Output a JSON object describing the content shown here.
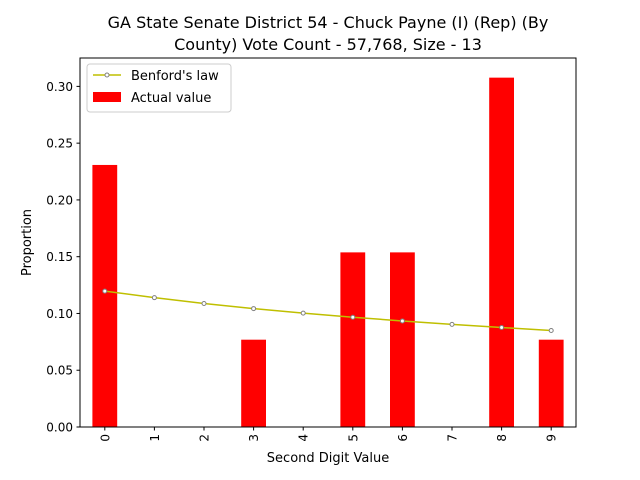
{
  "chart_data": {
    "type": "bar",
    "title_lines": [
      "GA State Senate District 54 - Chuck Payne (I) (Rep) (By",
      "County) Vote Count - 57,768, Size - 13"
    ],
    "xlabel": "Second Digit Value",
    "ylabel": "Proportion",
    "categories": [
      "0",
      "1",
      "2",
      "3",
      "4",
      "5",
      "6",
      "7",
      "8",
      "9"
    ],
    "ylim": [
      0,
      0.325
    ],
    "yticks": [
      "0.00",
      "0.05",
      "0.10",
      "0.15",
      "0.20",
      "0.25",
      "0.30"
    ],
    "grid": false,
    "legend_position": "top-left",
    "series": [
      {
        "name": "Benford's law",
        "kind": "line",
        "color": "#bfbf00",
        "values": [
          0.1197,
          0.1139,
          0.1088,
          0.1043,
          0.1003,
          0.0967,
          0.0934,
          0.0904,
          0.0876,
          0.085
        ]
      },
      {
        "name": "Actual value",
        "kind": "bar",
        "color": "#ff0000",
        "values": [
          0.2308,
          0.0,
          0.0,
          0.0769,
          0.0,
          0.1538,
          0.1538,
          0.0,
          0.3077,
          0.0769
        ]
      }
    ]
  }
}
